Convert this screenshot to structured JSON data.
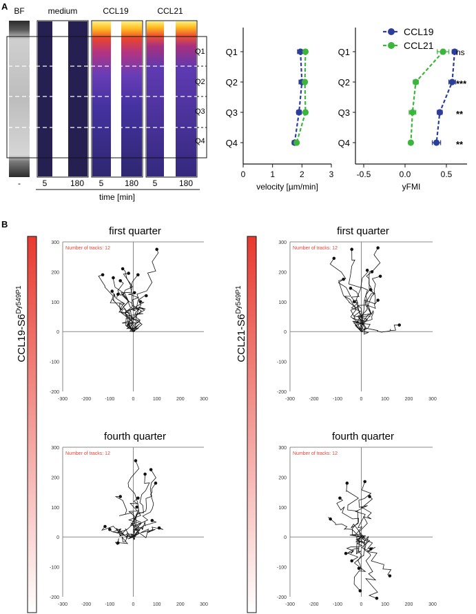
{
  "panels": {
    "a_label": "A",
    "b_label": "B"
  },
  "colors": {
    "ccl19": "#2d3e9a",
    "ccl21": "#3bb53b",
    "track_label": "#e0463a",
    "heat_low": "#2a1e5a",
    "heat_high": "#ffe53a",
    "bar_red": "#e8392f"
  },
  "strip": {
    "lanes": [
      "BF",
      "medium",
      "CCL19",
      "CCL21"
    ],
    "bf_tick": "-",
    "time_ticks": [
      "5",
      "180",
      "5",
      "180",
      "5",
      "180"
    ],
    "xlabel": "time [min]",
    "quarters": [
      "Q1",
      "Q2",
      "Q3",
      "Q4"
    ]
  },
  "chart_data": [
    {
      "type": "scatter",
      "title": "",
      "xlabel": "velocity [µm/min]",
      "ylabel": "",
      "categories": [
        "Q1",
        "Q2",
        "Q3",
        "Q4"
      ],
      "xlim": [
        0,
        3
      ],
      "xticks": [
        "0",
        "1",
        "2",
        "3"
      ],
      "series": [
        {
          "name": "CCL19",
          "values": [
            1.95,
            2.0,
            1.9,
            1.75
          ],
          "err": [
            0.1,
            0.1,
            0.08,
            0.08
          ]
        },
        {
          "name": "CCL21",
          "values": [
            2.12,
            2.1,
            2.12,
            1.82
          ],
          "err": [
            0.06,
            0.06,
            0.06,
            0.06
          ]
        }
      ]
    },
    {
      "type": "scatter",
      "title": "",
      "xlabel": "yFMI",
      "ylabel": "",
      "categories": [
        "Q1",
        "Q2",
        "Q3",
        "Q4"
      ],
      "xlim": [
        -0.6,
        0.75
      ],
      "xticks": [
        "-0.5",
        "0.0",
        "0.5"
      ],
      "legend": [
        "CCL19",
        "CCL21"
      ],
      "significance": [
        "ns",
        "***",
        "**",
        "**"
      ],
      "series": [
        {
          "name": "CCL19",
          "values": [
            0.6,
            0.57,
            0.42,
            0.38
          ],
          "err": [
            0.03,
            0.04,
            0.03,
            0.05
          ]
        },
        {
          "name": "CCL21",
          "values": [
            0.46,
            0.13,
            0.09,
            0.07
          ],
          "err": [
            0.07,
            0.03,
            0.04,
            0.02
          ]
        }
      ]
    }
  ],
  "track_plots": {
    "row_labels": [
      "CCL19-S6",
      "CCL21-S6"
    ],
    "row_label_sup": "Dy549P1",
    "titles": [
      "first quarter",
      "first quarter",
      "fourth quarter",
      "fourth quarter"
    ],
    "track_counts": [
      "Number of tracks: 12",
      "Number of tracks: 12",
      "Number of tracks: 12",
      "Number of tracks: 12"
    ],
    "y_ticks": [
      "300",
      "200",
      "100",
      "0",
      "-100",
      "-200"
    ],
    "x_ticks": [
      "-300",
      "-200",
      "-100",
      "0",
      "100",
      "200",
      "300"
    ],
    "axis_range": [
      -300,
      300
    ],
    "endpoints": [
      [
        [
          -130,
          190
        ],
        [
          -85,
          180
        ],
        [
          -55,
          170
        ],
        [
          -45,
          210
        ],
        [
          -20,
          195
        ],
        [
          20,
          190
        ],
        [
          100,
          275
        ],
        [
          -90,
          135
        ],
        [
          -65,
          125
        ],
        [
          5,
          130
        ],
        [
          55,
          120
        ],
        [
          30,
          100
        ]
      ],
      [
        [
          -115,
          245
        ],
        [
          -40,
          275
        ],
        [
          25,
          205
        ],
        [
          45,
          200
        ],
        [
          70,
          280
        ],
        [
          80,
          185
        ],
        [
          -75,
          175
        ],
        [
          -45,
          145
        ],
        [
          40,
          140
        ],
        [
          70,
          105
        ],
        [
          -30,
          100
        ],
        [
          160,
          22
        ]
      ],
      [
        [
          -120,
          35
        ],
        [
          -100,
          25
        ],
        [
          -65,
          -20
        ],
        [
          10,
          255
        ],
        [
          50,
          210
        ],
        [
          75,
          225
        ],
        [
          95,
          180
        ],
        [
          -55,
          135
        ],
        [
          20,
          130
        ],
        [
          15,
          100
        ],
        [
          80,
          55
        ],
        [
          110,
          30
        ]
      ],
      [
        [
          -130,
          60
        ],
        [
          -90,
          130
        ],
        [
          -60,
          180
        ],
        [
          15,
          185
        ],
        [
          35,
          135
        ],
        [
          -40,
          -80
        ],
        [
          -10,
          -105
        ],
        [
          -5,
          -180
        ],
        [
          40,
          -40
        ],
        [
          -65,
          -55
        ],
        [
          65,
          -205
        ],
        [
          120,
          -130
        ]
      ]
    ]
  }
}
